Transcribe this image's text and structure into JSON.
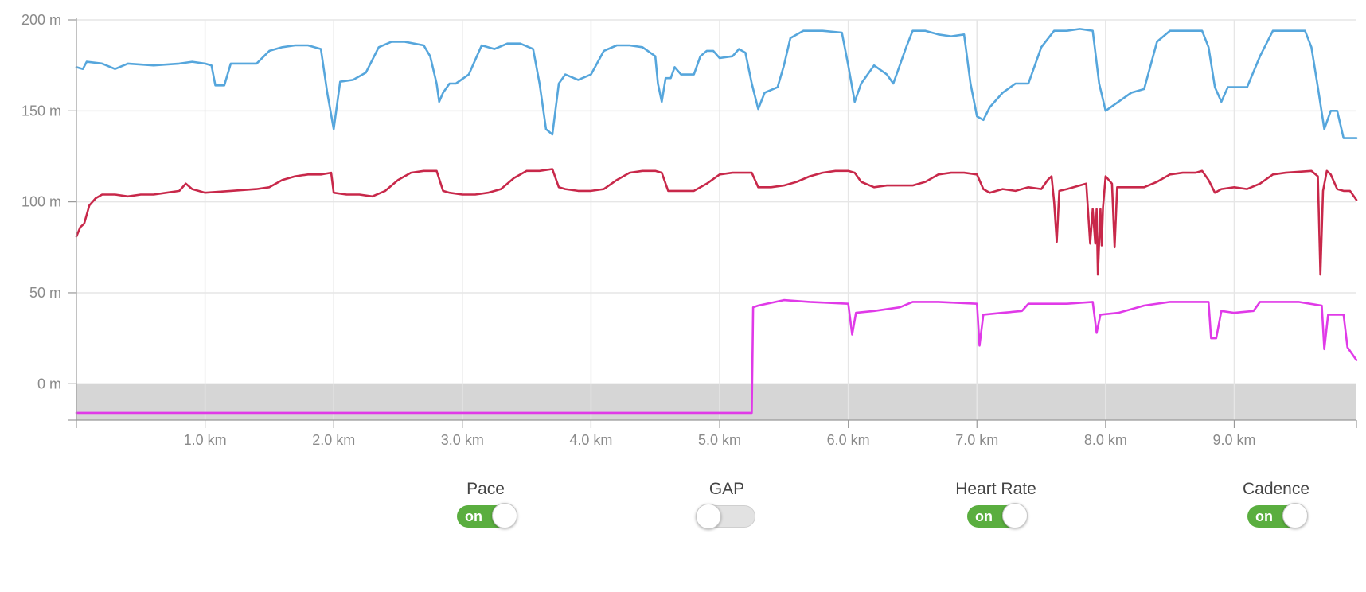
{
  "chart_data": {
    "type": "line",
    "title": "",
    "xlabel": "",
    "ylabel": "",
    "x_unit": "km",
    "y_unit": "m",
    "xlim": [
      0,
      9.95
    ],
    "ylim": [
      -20,
      200
    ],
    "x_ticks": [
      {
        "value": 1,
        "label": "1.0 km"
      },
      {
        "value": 2,
        "label": "2.0 km"
      },
      {
        "value": 3,
        "label": "3.0 km"
      },
      {
        "value": 4,
        "label": "4.0 km"
      },
      {
        "value": 5,
        "label": "5.0 km"
      },
      {
        "value": 6,
        "label": "6.0 km"
      },
      {
        "value": 7,
        "label": "7.0 km"
      },
      {
        "value": 8,
        "label": "8.0 km"
      },
      {
        "value": 9,
        "label": "9.0 km"
      }
    ],
    "y_ticks": [
      {
        "value": 200,
        "label": "200 m"
      },
      {
        "value": 150,
        "label": "150 m"
      },
      {
        "value": 100,
        "label": "100 m"
      },
      {
        "value": 50,
        "label": "50 m"
      },
      {
        "value": 0,
        "label": "0 m"
      }
    ],
    "grid": true,
    "shaded_band": {
      "from": -20,
      "to": 0,
      "color": "#d6d6d6"
    },
    "series": [
      {
        "color": "#56a6dc",
        "points": [
          [
            0,
            174
          ],
          [
            0.05,
            173
          ],
          [
            0.08,
            177
          ],
          [
            0.2,
            176
          ],
          [
            0.3,
            173
          ],
          [
            0.4,
            176
          ],
          [
            0.6,
            175
          ],
          [
            0.8,
            176
          ],
          [
            0.9,
            177
          ],
          [
            1.0,
            176
          ],
          [
            1.05,
            175
          ],
          [
            1.08,
            164
          ],
          [
            1.15,
            164
          ],
          [
            1.2,
            176
          ],
          [
            1.3,
            176
          ],
          [
            1.4,
            176
          ],
          [
            1.5,
            183
          ],
          [
            1.6,
            185
          ],
          [
            1.7,
            186
          ],
          [
            1.8,
            186
          ],
          [
            1.9,
            184
          ],
          [
            1.95,
            160
          ],
          [
            2.0,
            140
          ],
          [
            2.05,
            166
          ],
          [
            2.15,
            167
          ],
          [
            2.25,
            171
          ],
          [
            2.3,
            178
          ],
          [
            2.35,
            185
          ],
          [
            2.45,
            188
          ],
          [
            2.55,
            188
          ],
          [
            2.7,
            186
          ],
          [
            2.75,
            180
          ],
          [
            2.8,
            165
          ],
          [
            2.82,
            155
          ],
          [
            2.85,
            160
          ],
          [
            2.9,
            165
          ],
          [
            2.95,
            165
          ],
          [
            3.05,
            170
          ],
          [
            3.1,
            178
          ],
          [
            3.15,
            186
          ],
          [
            3.25,
            184
          ],
          [
            3.35,
            187
          ],
          [
            3.45,
            187
          ],
          [
            3.55,
            184
          ],
          [
            3.6,
            165
          ],
          [
            3.65,
            140
          ],
          [
            3.7,
            137
          ],
          [
            3.75,
            165
          ],
          [
            3.8,
            170
          ],
          [
            3.9,
            167
          ],
          [
            4.0,
            170
          ],
          [
            4.1,
            183
          ],
          [
            4.2,
            186
          ],
          [
            4.3,
            186
          ],
          [
            4.4,
            185
          ],
          [
            4.5,
            180
          ],
          [
            4.52,
            165
          ],
          [
            4.55,
            155
          ],
          [
            4.58,
            168
          ],
          [
            4.62,
            168
          ],
          [
            4.65,
            174
          ],
          [
            4.7,
            170
          ],
          [
            4.8,
            170
          ],
          [
            4.85,
            180
          ],
          [
            4.9,
            183
          ],
          [
            4.95,
            183
          ],
          [
            5.0,
            179
          ],
          [
            5.1,
            180
          ],
          [
            5.15,
            184
          ],
          [
            5.2,
            182
          ],
          [
            5.25,
            165
          ],
          [
            5.3,
            151
          ],
          [
            5.35,
            160
          ],
          [
            5.45,
            163
          ],
          [
            5.5,
            175
          ],
          [
            5.55,
            190
          ],
          [
            5.65,
            194
          ],
          [
            5.8,
            194
          ],
          [
            5.95,
            193
          ],
          [
            6.0,
            175
          ],
          [
            6.05,
            155
          ],
          [
            6.1,
            165
          ],
          [
            6.2,
            175
          ],
          [
            6.3,
            170
          ],
          [
            6.35,
            165
          ],
          [
            6.45,
            185
          ],
          [
            6.5,
            194
          ],
          [
            6.6,
            194
          ],
          [
            6.7,
            192
          ],
          [
            6.8,
            191
          ],
          [
            6.9,
            192
          ],
          [
            6.95,
            165
          ],
          [
            7.0,
            147
          ],
          [
            7.05,
            145
          ],
          [
            7.1,
            152
          ],
          [
            7.2,
            160
          ],
          [
            7.3,
            165
          ],
          [
            7.4,
            165
          ],
          [
            7.5,
            185
          ],
          [
            7.6,
            194
          ],
          [
            7.7,
            194
          ],
          [
            7.8,
            195
          ],
          [
            7.9,
            194
          ],
          [
            7.95,
            165
          ],
          [
            8.0,
            150
          ],
          [
            8.1,
            155
          ],
          [
            8.2,
            160
          ],
          [
            8.3,
            162
          ],
          [
            8.35,
            175
          ],
          [
            8.4,
            188
          ],
          [
            8.5,
            194
          ],
          [
            8.6,
            194
          ],
          [
            8.75,
            194
          ],
          [
            8.8,
            185
          ],
          [
            8.85,
            163
          ],
          [
            8.9,
            155
          ],
          [
            8.95,
            163
          ],
          [
            9.0,
            163
          ],
          [
            9.1,
            163
          ],
          [
            9.2,
            180
          ],
          [
            9.3,
            194
          ],
          [
            9.4,
            194
          ],
          [
            9.55,
            194
          ],
          [
            9.6,
            185
          ],
          [
            9.65,
            163
          ],
          [
            9.7,
            140
          ],
          [
            9.75,
            150
          ],
          [
            9.8,
            150
          ],
          [
            9.85,
            135
          ],
          [
            9.95,
            135
          ]
        ]
      },
      {
        "color": "#c8284a",
        "points": [
          [
            0,
            81
          ],
          [
            0.03,
            86
          ],
          [
            0.06,
            88
          ],
          [
            0.1,
            98
          ],
          [
            0.15,
            102
          ],
          [
            0.2,
            104
          ],
          [
            0.3,
            104
          ],
          [
            0.4,
            103
          ],
          [
            0.5,
            104
          ],
          [
            0.6,
            104
          ],
          [
            0.7,
            105
          ],
          [
            0.8,
            106
          ],
          [
            0.85,
            110
          ],
          [
            0.9,
            107
          ],
          [
            0.95,
            106
          ],
          [
            1.0,
            105
          ],
          [
            1.2,
            106
          ],
          [
            1.4,
            107
          ],
          [
            1.5,
            108
          ],
          [
            1.6,
            112
          ],
          [
            1.7,
            114
          ],
          [
            1.8,
            115
          ],
          [
            1.9,
            115
          ],
          [
            1.98,
            116
          ],
          [
            2.0,
            105
          ],
          [
            2.1,
            104
          ],
          [
            2.2,
            104
          ],
          [
            2.3,
            103
          ],
          [
            2.4,
            106
          ],
          [
            2.5,
            112
          ],
          [
            2.6,
            116
          ],
          [
            2.7,
            117
          ],
          [
            2.8,
            117
          ],
          [
            2.85,
            106
          ],
          [
            2.9,
            105
          ],
          [
            3.0,
            104
          ],
          [
            3.1,
            104
          ],
          [
            3.2,
            105
          ],
          [
            3.3,
            107
          ],
          [
            3.4,
            113
          ],
          [
            3.5,
            117
          ],
          [
            3.6,
            117
          ],
          [
            3.7,
            118
          ],
          [
            3.75,
            108
          ],
          [
            3.8,
            107
          ],
          [
            3.9,
            106
          ],
          [
            4.0,
            106
          ],
          [
            4.1,
            107
          ],
          [
            4.2,
            112
          ],
          [
            4.3,
            116
          ],
          [
            4.4,
            117
          ],
          [
            4.5,
            117
          ],
          [
            4.55,
            116
          ],
          [
            4.6,
            106
          ],
          [
            4.7,
            106
          ],
          [
            4.8,
            106
          ],
          [
            4.9,
            110
          ],
          [
            5.0,
            115
          ],
          [
            5.1,
            116
          ],
          [
            5.2,
            116
          ],
          [
            5.25,
            116
          ],
          [
            5.3,
            108
          ],
          [
            5.4,
            108
          ],
          [
            5.5,
            109
          ],
          [
            5.6,
            111
          ],
          [
            5.7,
            114
          ],
          [
            5.8,
            116
          ],
          [
            5.9,
            117
          ],
          [
            6.0,
            117
          ],
          [
            6.05,
            116
          ],
          [
            6.1,
            111
          ],
          [
            6.2,
            108
          ],
          [
            6.3,
            109
          ],
          [
            6.4,
            109
          ],
          [
            6.5,
            109
          ],
          [
            6.6,
            111
          ],
          [
            6.7,
            115
          ],
          [
            6.8,
            116
          ],
          [
            6.9,
            116
          ],
          [
            7.0,
            115
          ],
          [
            7.05,
            107
          ],
          [
            7.1,
            105
          ],
          [
            7.2,
            107
          ],
          [
            7.3,
            106
          ],
          [
            7.4,
            108
          ],
          [
            7.5,
            107
          ],
          [
            7.55,
            112
          ],
          [
            7.58,
            114
          ],
          [
            7.6,
            100
          ],
          [
            7.62,
            78
          ],
          [
            7.64,
            106
          ],
          [
            7.7,
            107
          ],
          [
            7.85,
            110
          ],
          [
            7.88,
            77
          ],
          [
            7.9,
            96
          ],
          [
            7.92,
            77
          ],
          [
            7.93,
            96
          ],
          [
            7.94,
            60
          ],
          [
            7.96,
            96
          ],
          [
            7.97,
            76
          ],
          [
            7.98,
            97
          ],
          [
            8.0,
            114
          ],
          [
            8.05,
            110
          ],
          [
            8.07,
            75
          ],
          [
            8.09,
            108
          ],
          [
            8.2,
            108
          ],
          [
            8.3,
            108
          ],
          [
            8.4,
            111
          ],
          [
            8.5,
            115
          ],
          [
            8.6,
            116
          ],
          [
            8.7,
            116
          ],
          [
            8.75,
            117
          ],
          [
            8.8,
            112
          ],
          [
            8.85,
            105
          ],
          [
            8.9,
            107
          ],
          [
            9.0,
            108
          ],
          [
            9.1,
            107
          ],
          [
            9.2,
            110
          ],
          [
            9.3,
            115
          ],
          [
            9.4,
            116
          ],
          [
            9.6,
            117
          ],
          [
            9.65,
            114
          ],
          [
            9.67,
            60
          ],
          [
            9.69,
            106
          ],
          [
            9.72,
            117
          ],
          [
            9.75,
            115
          ],
          [
            9.8,
            107
          ],
          [
            9.85,
            106
          ],
          [
            9.9,
            106
          ],
          [
            9.95,
            101
          ]
        ]
      },
      {
        "color": "#e03ae8",
        "points": [
          [
            0,
            -16
          ],
          [
            5.25,
            -16
          ],
          [
            5.26,
            42
          ],
          [
            5.3,
            43
          ],
          [
            5.5,
            46
          ],
          [
            5.7,
            45
          ],
          [
            6.0,
            44
          ],
          [
            6.03,
            27
          ],
          [
            6.06,
            39
          ],
          [
            6.2,
            40
          ],
          [
            6.4,
            42
          ],
          [
            6.5,
            45
          ],
          [
            6.7,
            45
          ],
          [
            7.0,
            44
          ],
          [
            7.02,
            21
          ],
          [
            7.05,
            38
          ],
          [
            7.2,
            39
          ],
          [
            7.35,
            40
          ],
          [
            7.4,
            44
          ],
          [
            7.6,
            44
          ],
          [
            7.7,
            44
          ],
          [
            7.9,
            45
          ],
          [
            7.93,
            28
          ],
          [
            7.96,
            38
          ],
          [
            8.1,
            39
          ],
          [
            8.3,
            43
          ],
          [
            8.5,
            45
          ],
          [
            8.8,
            45
          ],
          [
            8.82,
            25
          ],
          [
            8.86,
            25
          ],
          [
            8.9,
            40
          ],
          [
            9.0,
            39
          ],
          [
            9.15,
            40
          ],
          [
            9.2,
            45
          ],
          [
            9.5,
            45
          ],
          [
            9.68,
            43
          ],
          [
            9.7,
            19
          ],
          [
            9.73,
            38
          ],
          [
            9.85,
            38
          ],
          [
            9.88,
            20
          ],
          [
            9.95,
            13
          ]
        ]
      }
    ]
  },
  "toggles": {
    "pace": {
      "label": "Pace",
      "state_text": "on",
      "on": true
    },
    "gap": {
      "label": "GAP",
      "state_text": "",
      "on": false
    },
    "heart_rate": {
      "label": "Heart Rate",
      "state_text": "on",
      "on": true
    },
    "cadence": {
      "label": "Cadence",
      "state_text": "on",
      "on": true
    }
  }
}
